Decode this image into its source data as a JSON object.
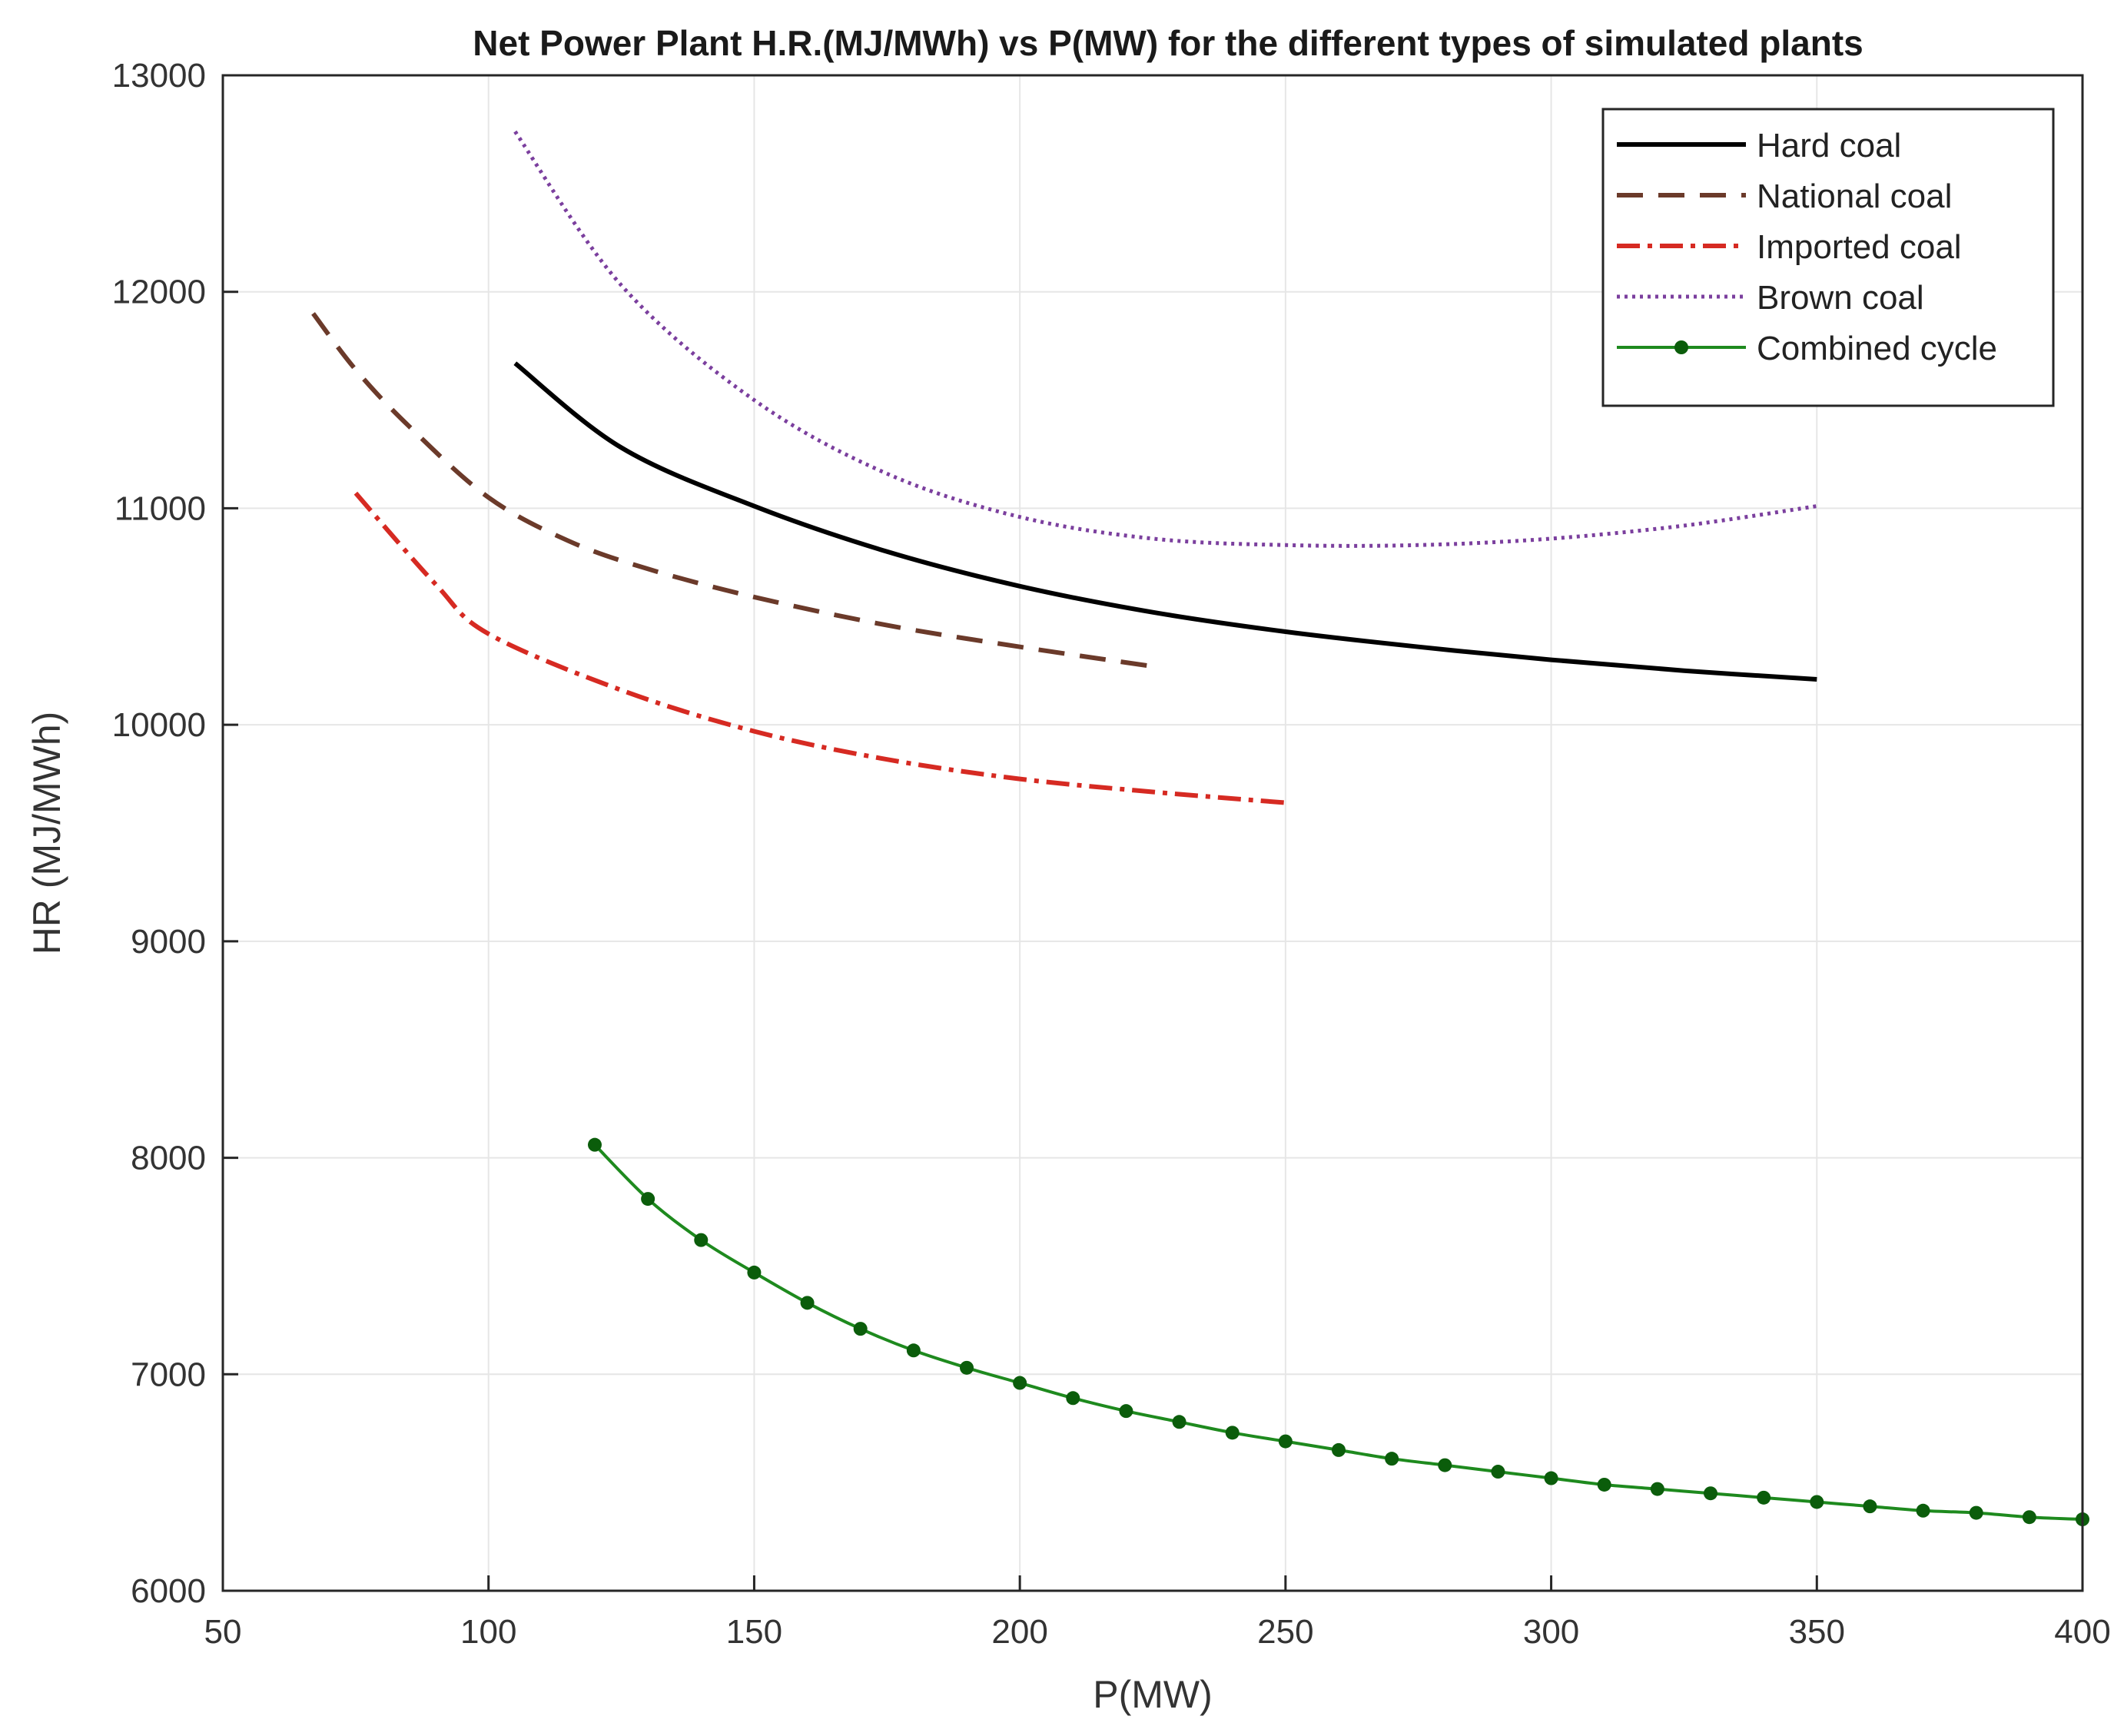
{
  "chart_data": {
    "type": "line",
    "title": "Net Power Plant H.R.(MJ/MWh) vs P(MW) for the different types of simulated plants",
    "xlabel": "P(MW)",
    "ylabel": "HR (MJ/MWh)",
    "xlim": [
      50,
      400
    ],
    "ylim": [
      6000,
      13000
    ],
    "x_ticks": [
      "50",
      "100",
      "150",
      "200",
      "250",
      "300",
      "350",
      "400"
    ],
    "y_ticks": [
      "6000",
      "7000",
      "8000",
      "9000",
      "10000",
      "11000",
      "12000",
      "13000"
    ],
    "grid": true,
    "legend_position": "top-right",
    "series": [
      {
        "name": "Hard coal",
        "color": "#000000",
        "style": "solid",
        "x": [
          105,
          125,
          150,
          175,
          200,
          225,
          250,
          275,
          300,
          325,
          350
        ],
        "y": [
          11670,
          11280,
          11010,
          10800,
          10640,
          10520,
          10430,
          10360,
          10300,
          10250,
          10210
        ]
      },
      {
        "name": "National coal",
        "color": "#6b3a2a",
        "style": "dashed",
        "x": [
          67,
          75,
          85,
          100,
          115,
          130,
          150,
          175,
          200,
          225
        ],
        "y": [
          11900,
          11640,
          11380,
          11050,
          10850,
          10720,
          10590,
          10460,
          10360,
          10270
        ]
      },
      {
        "name": "Imported coal",
        "color": "#d62a22",
        "style": "dashdot",
        "x": [
          75,
          90,
          100,
          125,
          150,
          175,
          200,
          225,
          250
        ],
        "y": [
          11070,
          10650,
          10420,
          10160,
          9970,
          9840,
          9750,
          9690,
          9640
        ]
      },
      {
        "name": "Brown coal",
        "color": "#7b3f9e",
        "style": "dotted",
        "x": [
          105,
          125,
          150,
          175,
          200,
          225,
          250,
          275,
          300,
          325,
          350
        ],
        "y": [
          12740,
          12030,
          11500,
          11160,
          10960,
          10860,
          10830,
          10830,
          10860,
          10920,
          11010
        ]
      },
      {
        "name": "Combined cycle",
        "color": "#1e8a1e",
        "style": "solid-markers",
        "marker_color": "#0b5d0b",
        "x": [
          120,
          130,
          140,
          150,
          160,
          170,
          180,
          190,
          200,
          210,
          220,
          230,
          240,
          250,
          260,
          270,
          280,
          290,
          300,
          310,
          320,
          330,
          340,
          350,
          360,
          370,
          380,
          390,
          400
        ],
        "y": [
          8060,
          7810,
          7620,
          7470,
          7330,
          7210,
          7110,
          7030,
          6960,
          6890,
          6830,
          6780,
          6730,
          6690,
          6650,
          6610,
          6580,
          6550,
          6520,
          6490,
          6470,
          6450,
          6430,
          6410,
          6390,
          6370,
          6360,
          6340,
          6330
        ]
      }
    ]
  }
}
